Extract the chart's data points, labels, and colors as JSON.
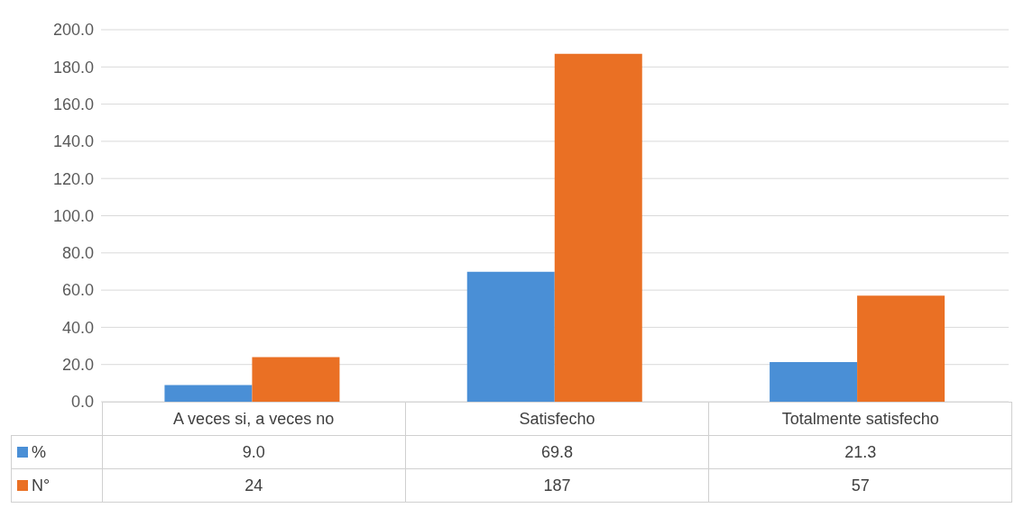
{
  "chart_data": {
    "type": "bar",
    "categories": [
      "A  veces si, a veces no",
      "Satisfecho",
      "Totalmente satisfecho"
    ],
    "series": [
      {
        "name": "%",
        "color": "#4a8fd6",
        "values": [
          9.0,
          69.8,
          21.3
        ],
        "value_labels": [
          "9.0",
          "69.8",
          "21.3"
        ]
      },
      {
        "name": "N°",
        "color": "#ea7024",
        "values": [
          24,
          187,
          57
        ],
        "value_labels": [
          "24",
          "187",
          "57"
        ]
      }
    ],
    "ylim": [
      0,
      200
    ],
    "yticks": [
      {
        "value": 0,
        "label": "0.0"
      },
      {
        "value": 20,
        "label": "20.0"
      },
      {
        "value": 40,
        "label": "40.0"
      },
      {
        "value": 60,
        "label": "60.0"
      },
      {
        "value": 80,
        "label": "80.0"
      },
      {
        "value": 100,
        "label": "100.0"
      },
      {
        "value": 120,
        "label": "120.0"
      },
      {
        "value": 140,
        "label": "140.0"
      },
      {
        "value": 160,
        "label": "160.0"
      },
      {
        "value": 180,
        "label": "180.0"
      },
      {
        "value": 200,
        "label": "200.0"
      }
    ],
    "grid": "y",
    "legend": "bottom"
  }
}
